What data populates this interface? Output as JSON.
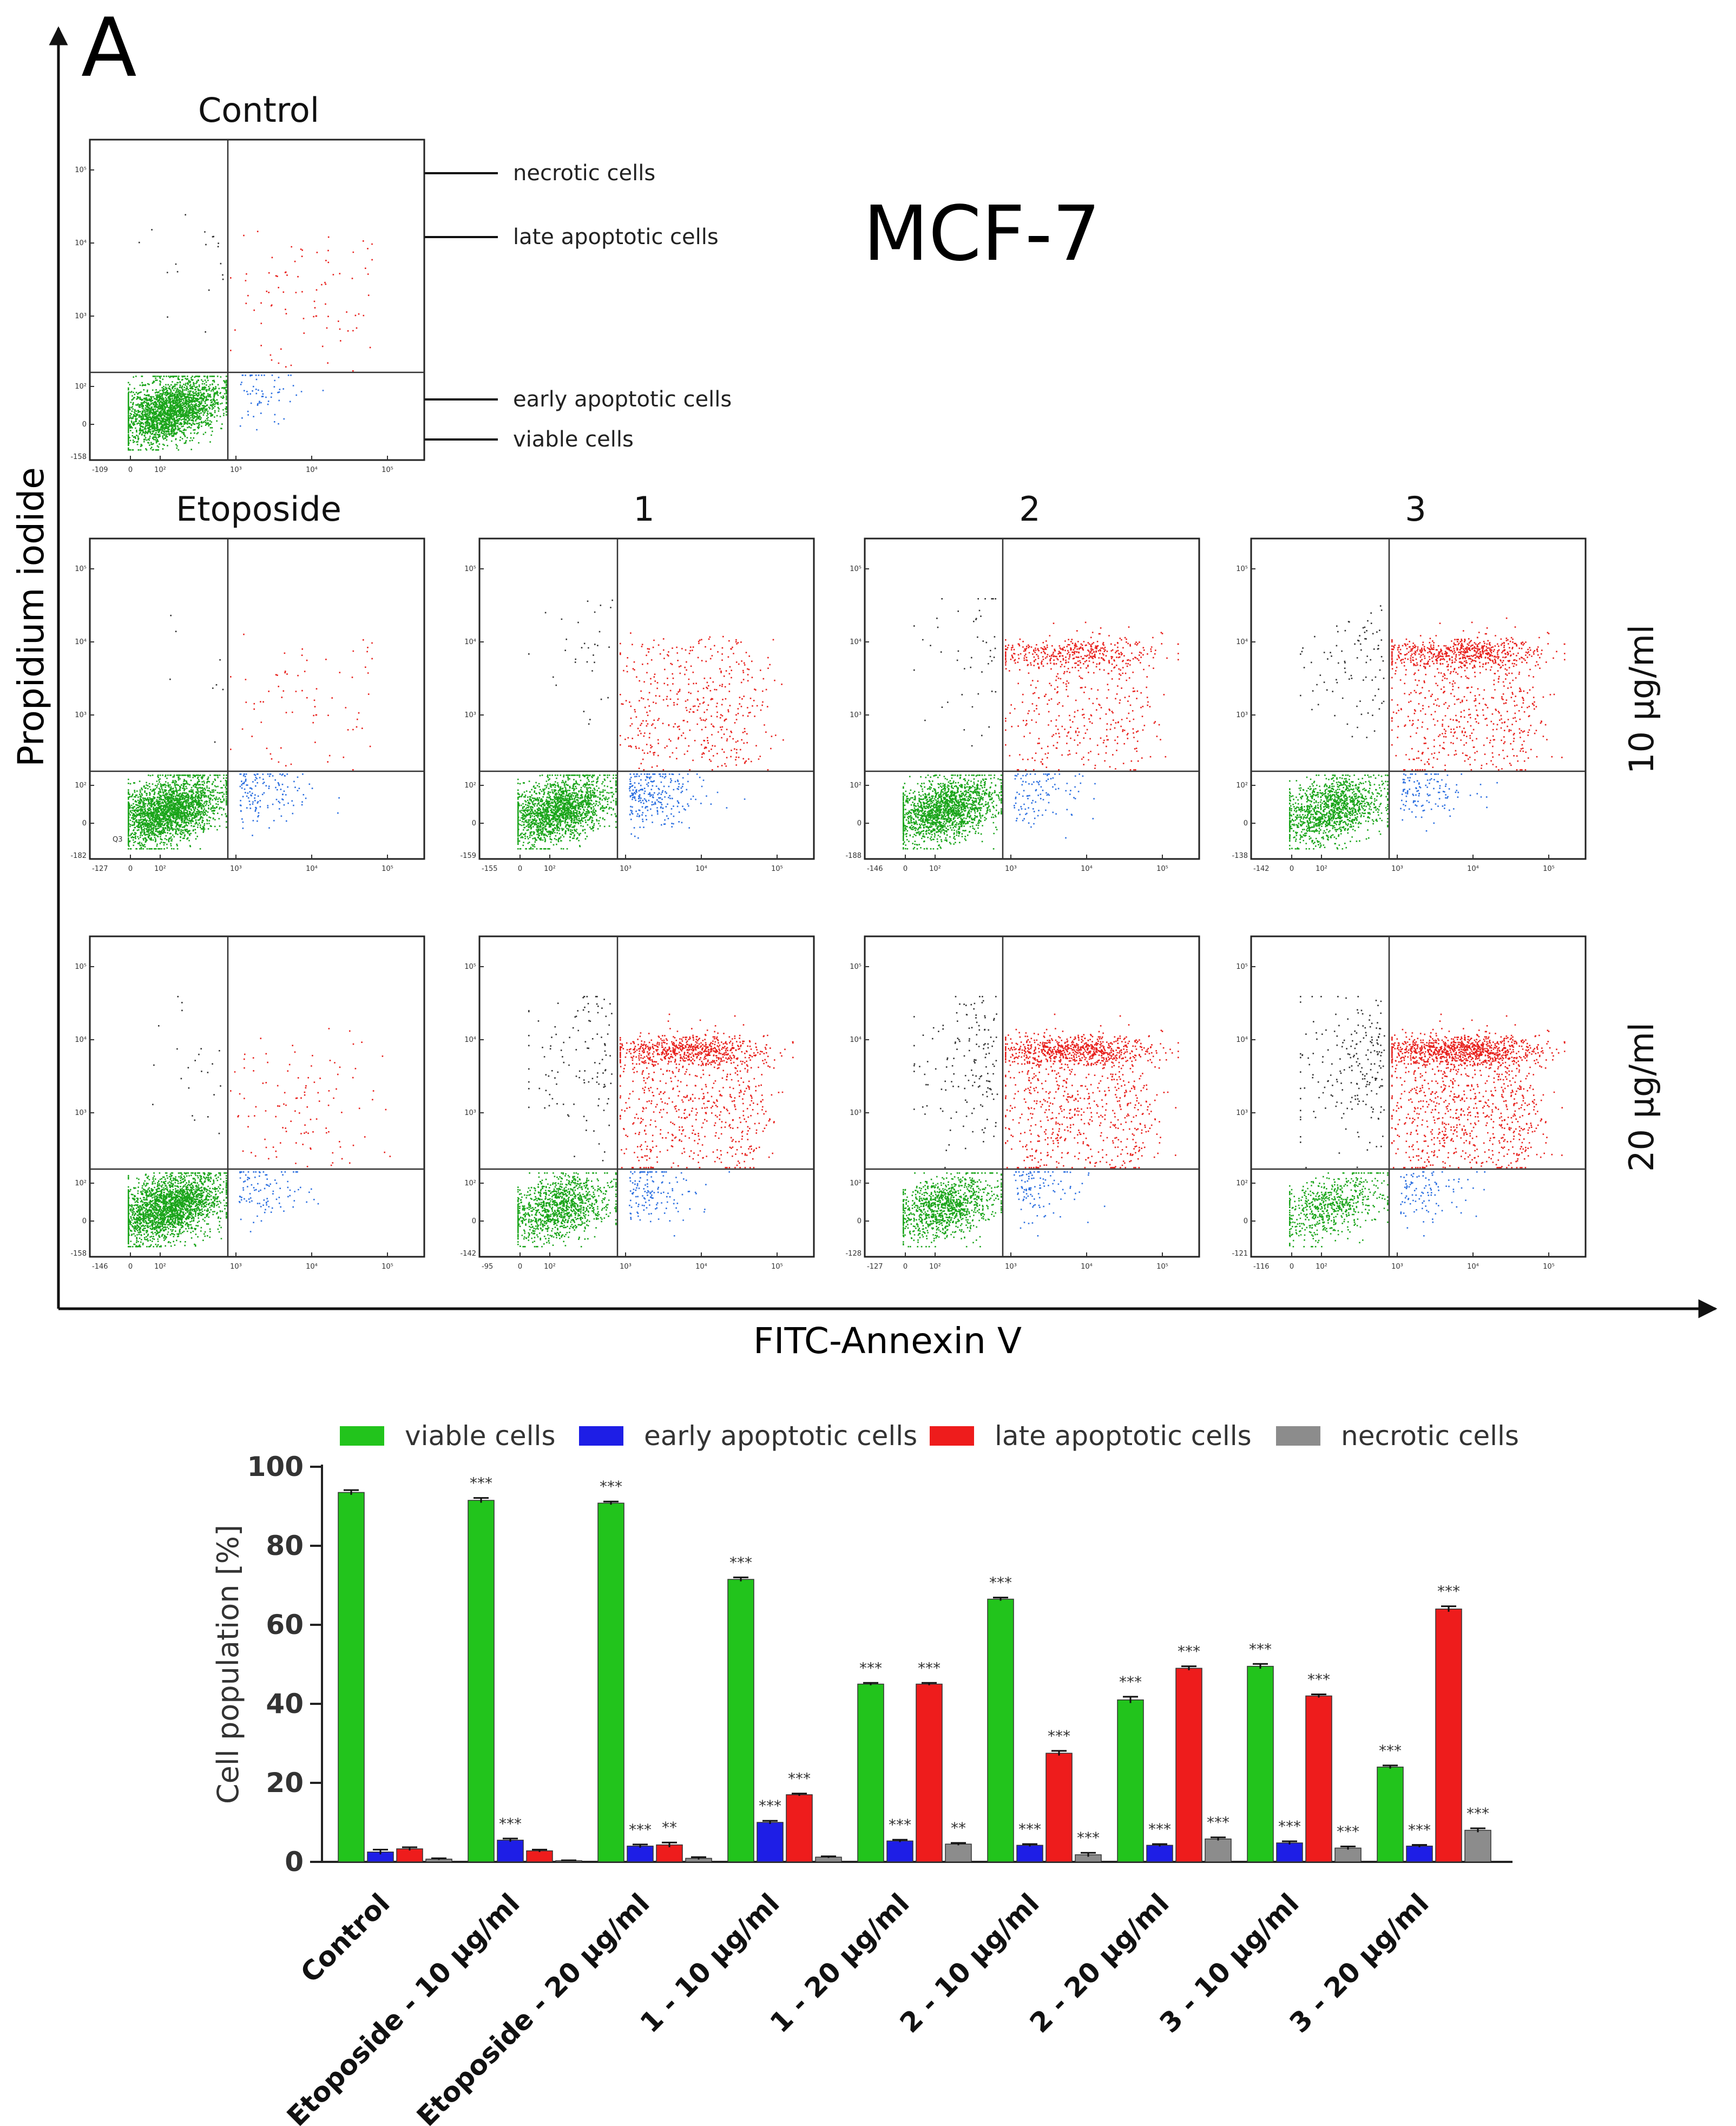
{
  "panel_label": "A",
  "cell_line": "MCF-7",
  "axes": {
    "y_label": "Propidium iodide",
    "x_label": "FITC-Annexin V"
  },
  "scatter": {
    "control_title": "Control",
    "column_titles": [
      "Etoposide",
      "1",
      "2",
      "3"
    ],
    "row_titles": [
      "10 µg/ml",
      "20 µg/ml"
    ],
    "annotations": [
      "necrotic cells",
      "late apoptotic cells",
      "early apoptotic cells",
      "viable cells"
    ],
    "gate_label": "Q3",
    "y_ticks": [
      "10⁵",
      "10⁴",
      "10³",
      "10²",
      "0"
    ],
    "x_ticks": [
      "0",
      "10²",
      "10³",
      "10⁴",
      "10⁵"
    ],
    "plots": [
      {
        "id": "control",
        "viable": 93.5,
        "early": 2.5,
        "late": 3.3,
        "necrotic": 0.7,
        "x_min": "-109",
        "y_min": "-158"
      },
      {
        "id": "etoposide-10",
        "viable": 91.5,
        "early": 5.5,
        "late": 2.8,
        "necrotic": 0.3,
        "x_min": "-127",
        "y_min": "-182"
      },
      {
        "id": "c1-10",
        "viable": 71.5,
        "early": 10,
        "late": 17,
        "necrotic": 1.2,
        "x_min": "-155",
        "y_min": "-159"
      },
      {
        "id": "c2-10",
        "viable": 66.5,
        "early": 4.2,
        "late": 27.5,
        "necrotic": 1.8,
        "x_min": "-146",
        "y_min": "-188"
      },
      {
        "id": "c3-10",
        "viable": 49.5,
        "early": 4.8,
        "late": 42,
        "necrotic": 3.5,
        "x_min": "-142",
        "y_min": "-138"
      },
      {
        "id": "etoposide-20",
        "viable": 90.8,
        "early": 4,
        "late": 4.3,
        "necrotic": 0.9,
        "x_min": "-146",
        "y_min": "-158"
      },
      {
        "id": "c1-20",
        "viable": 45,
        "early": 5.3,
        "late": 45,
        "necrotic": 4.5,
        "x_min": "-95",
        "y_min": "-142"
      },
      {
        "id": "c2-20",
        "viable": 41,
        "early": 4.2,
        "late": 49,
        "necrotic": 5.8,
        "x_min": "-127",
        "y_min": "-128"
      },
      {
        "id": "c3-20",
        "viable": 24,
        "early": 4,
        "late": 64,
        "necrotic": 8,
        "x_min": "-116",
        "y_min": "-121"
      }
    ]
  },
  "chart_data": {
    "type": "bar",
    "title": "",
    "xlabel": "",
    "ylabel": "Cell population [%]",
    "ylim": [
      0,
      100
    ],
    "yticks": [
      0,
      20,
      40,
      60,
      80,
      100
    ],
    "legend_position": "top",
    "categories": [
      "Control",
      "Etoposide - 10 µg/ml",
      "Etoposide - 20 µg/ml",
      "1 - 10 µg/ml",
      "1 - 20 µg/ml",
      "2 - 10 µg/ml",
      "2 - 20 µg/ml",
      "3 - 10 µg/ml",
      "3 - 20 µg/ml"
    ],
    "series": [
      {
        "name": "viable cells",
        "color": "#22c41c",
        "values": [
          93.5,
          91.5,
          90.8,
          71.5,
          45.0,
          66.5,
          41.0,
          49.5,
          24.0
        ],
        "errors": [
          0.6,
          0.6,
          0.4,
          0.5,
          0.3,
          0.4,
          0.8,
          0.6,
          0.4
        ],
        "sig": [
          "",
          "***",
          "***",
          "***",
          "***",
          "***",
          "***",
          "***",
          "***"
        ]
      },
      {
        "name": "early apoptotic cells",
        "color": "#1e1ee6",
        "values": [
          2.5,
          5.5,
          4.0,
          10.0,
          5.3,
          4.2,
          4.2,
          4.8,
          4.0
        ],
        "errors": [
          0.6,
          0.4,
          0.4,
          0.4,
          0.3,
          0.3,
          0.3,
          0.4,
          0.3
        ],
        "sig": [
          "",
          "***",
          "***",
          "***",
          "***",
          "***",
          "***",
          "***",
          "***"
        ]
      },
      {
        "name": "late apoptotic cells",
        "color": "#ee1c1c",
        "values": [
          3.3,
          2.8,
          4.3,
          17.0,
          45.0,
          27.5,
          49.0,
          42.0,
          64.0
        ],
        "errors": [
          0.4,
          0.3,
          0.6,
          0.3,
          0.3,
          0.6,
          0.5,
          0.4,
          0.7
        ],
        "sig": [
          "",
          "",
          "**",
          "***",
          "***",
          "***",
          "***",
          "***",
          "***"
        ]
      },
      {
        "name": "necrotic cells",
        "color": "#8c8c8c",
        "values": [
          0.7,
          0.3,
          0.9,
          1.2,
          4.5,
          1.8,
          5.8,
          3.5,
          8.0
        ],
        "errors": [
          0.2,
          0.1,
          0.3,
          0.2,
          0.3,
          0.5,
          0.4,
          0.4,
          0.5
        ],
        "sig": [
          "",
          "",
          "",
          "",
          "**",
          "***",
          "***",
          "***",
          "***"
        ]
      }
    ]
  }
}
